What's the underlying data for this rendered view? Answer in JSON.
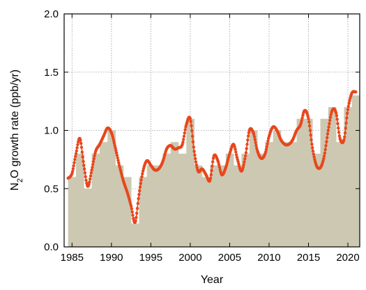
{
  "chart_data": {
    "type": "bar",
    "xlabel": "Year",
    "ylabel_parts": [
      "N",
      "2",
      "O growth rate (ppb/yr)"
    ],
    "xlim": [
      1984,
      2021.5
    ],
    "ylim": [
      0,
      2.0
    ],
    "xticks": [
      1985,
      1990,
      1995,
      2000,
      2005,
      2010,
      2015,
      2020
    ],
    "xtick_labels": [
      "1985",
      "1990",
      "1995",
      "2000",
      "2005",
      "2010",
      "2015",
      "2020"
    ],
    "yticks": [
      0,
      0.5,
      1.0,
      1.5,
      2.0
    ],
    "ytick_labels": [
      "0.0",
      "0.5",
      "1.0",
      "1.5",
      "2.0"
    ],
    "grid": true,
    "colors": {
      "bars": "#cdc8b1",
      "line": "#e8461c",
      "grid": "#9a9a9a"
    },
    "series": [
      {
        "type": "bar",
        "years": [
          1985,
          1986,
          1987,
          1988,
          1989,
          1990,
          1991,
          1992,
          1993,
          1994,
          1995,
          1996,
          1997,
          1998,
          1999,
          2000,
          2001,
          2002,
          2003,
          2004,
          2005,
          2006,
          2007,
          2008,
          2009,
          2010,
          2011,
          2012,
          2013,
          2014,
          2015,
          2016,
          2017,
          2018,
          2019,
          2020,
          2021
        ],
        "values": [
          0.6,
          0.8,
          0.5,
          0.8,
          0.9,
          1.0,
          0.7,
          0.6,
          0.2,
          0.6,
          0.7,
          0.7,
          0.8,
          0.9,
          0.8,
          1.1,
          0.7,
          0.6,
          0.7,
          0.7,
          0.8,
          0.7,
          0.8,
          1.0,
          0.8,
          0.9,
          1.0,
          0.9,
          0.9,
          1.1,
          1.1,
          0.8,
          1.1,
          1.2,
          0.9,
          1.2,
          1.3
        ]
      },
      {
        "type": "line",
        "x": [
          1984.5,
          1985.0,
          1985.5,
          1986.0,
          1986.5,
          1987.0,
          1987.5,
          1988.0,
          1988.5,
          1989.0,
          1989.5,
          1990.0,
          1990.5,
          1991.0,
          1991.5,
          1992.0,
          1992.5,
          1993.0,
          1993.5,
          1994.0,
          1994.5,
          1995.0,
          1995.5,
          1996.0,
          1996.5,
          1997.0,
          1997.5,
          1998.0,
          1998.5,
          1999.0,
          1999.5,
          2000.0,
          2000.5,
          2001.0,
          2001.5,
          2002.0,
          2002.5,
          2003.0,
          2003.5,
          2004.0,
          2004.5,
          2005.0,
          2005.5,
          2006.0,
          2006.5,
          2007.0,
          2007.5,
          2008.0,
          2008.5,
          2009.0,
          2009.5,
          2010.0,
          2010.5,
          2011.0,
          2011.5,
          2012.0,
          2012.5,
          2013.0,
          2013.5,
          2014.0,
          2014.5,
          2015.0,
          2015.5,
          2016.0,
          2016.5,
          2017.0,
          2017.5,
          2018.0,
          2018.5,
          2019.0,
          2019.5,
          2020.0,
          2020.5,
          2021.0
        ],
        "values": [
          0.59,
          0.63,
          0.8,
          0.93,
          0.7,
          0.52,
          0.66,
          0.82,
          0.88,
          0.95,
          1.02,
          0.98,
          0.85,
          0.7,
          0.57,
          0.47,
          0.35,
          0.21,
          0.45,
          0.65,
          0.74,
          0.7,
          0.66,
          0.67,
          0.73,
          0.84,
          0.87,
          0.84,
          0.85,
          0.88,
          1.05,
          1.1,
          0.82,
          0.65,
          0.67,
          0.62,
          0.57,
          0.78,
          0.74,
          0.62,
          0.68,
          0.8,
          0.88,
          0.75,
          0.65,
          0.78,
          1.0,
          0.98,
          0.83,
          0.76,
          0.8,
          0.95,
          1.03,
          1.0,
          0.92,
          0.88,
          0.88,
          0.92,
          1.0,
          1.05,
          1.17,
          1.1,
          0.85,
          0.7,
          0.68,
          0.78,
          1.0,
          1.17,
          1.15,
          0.93,
          0.92,
          1.18,
          1.32,
          1.33
        ]
      }
    ]
  }
}
